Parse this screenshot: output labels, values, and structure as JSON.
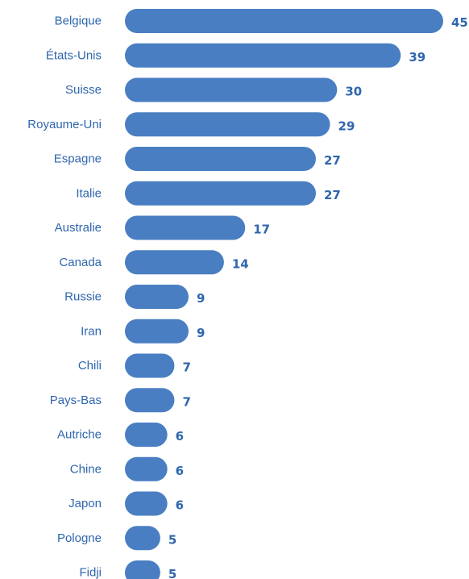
{
  "colors": {
    "bar": "#4a7ec2",
    "text": "#2f66ad",
    "background": "#ffffff"
  },
  "chart_data": {
    "type": "bar",
    "orientation": "horizontal",
    "title": "",
    "xlabel": "",
    "ylabel": "",
    "grid": false,
    "legend": "none",
    "xlim": [
      0,
      45
    ],
    "categories": [
      "Belgique",
      "États-Unis",
      "Suisse",
      "Royaume-Uni",
      "Espagne",
      "Italie",
      "Australie",
      "Canada",
      "Russie",
      "Iran",
      "Chili",
      "Pays-Bas",
      "Autriche",
      "Chine",
      "Japon",
      "Pologne",
      "Fidji"
    ],
    "values": [
      45,
      39,
      30,
      29,
      27,
      27,
      17,
      14,
      9,
      9,
      7,
      7,
      6,
      6,
      6,
      5,
      5
    ],
    "value_labels": [
      "45",
      "39",
      "30",
      "29",
      "27",
      "27",
      "17",
      "14",
      "9",
      "9",
      "7",
      "7",
      "6",
      "6",
      "6",
      "5",
      "5"
    ]
  }
}
